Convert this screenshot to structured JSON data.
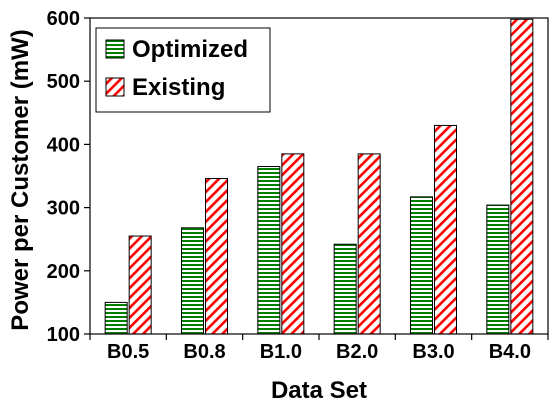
{
  "chart_data": {
    "type": "bar",
    "xlabel": "Data Set",
    "ylabel": "Power per Customer (mW)",
    "ylim": [
      100,
      600
    ],
    "yticks": [
      100,
      200,
      300,
      400,
      500,
      600
    ],
    "categories": [
      "B0.5",
      "B0.8",
      "B1.0",
      "B2.0",
      "B3.0",
      "B4.0"
    ],
    "series": [
      {
        "name": "Optimized",
        "values": [
          150,
          268,
          365,
          242,
          317,
          304
        ],
        "color": "#008000",
        "pattern": "horizontal-lines"
      },
      {
        "name": "Existing",
        "values": [
          255,
          346,
          385,
          385,
          430,
          598
        ],
        "color": "#ff0000",
        "pattern": "diagonal-lines"
      }
    ],
    "legend": "top-left",
    "grid": false
  }
}
